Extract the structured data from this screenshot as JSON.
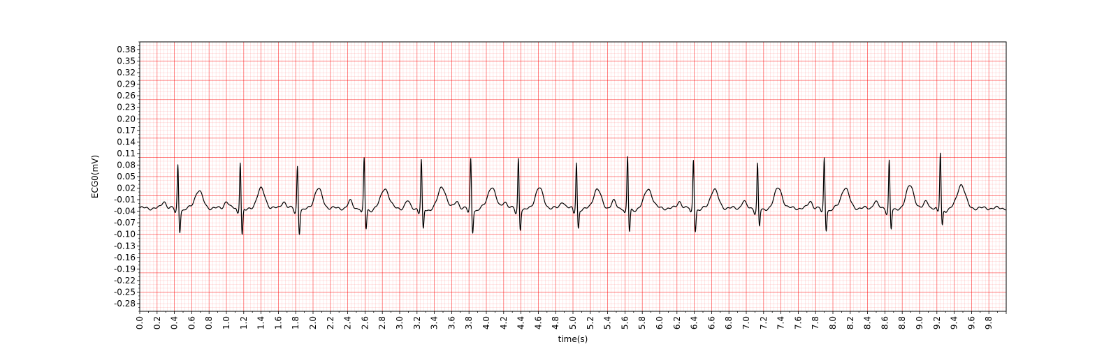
{
  "chart_data": {
    "type": "line",
    "title": "",
    "xlabel": "time(s)",
    "ylabel": "ECG0(mV)",
    "xlim": [
      0.0,
      10.0
    ],
    "ylim": [
      -0.3,
      0.4
    ],
    "xticks": [
      "0.0",
      "0.2",
      "0.4",
      "0.6",
      "0.8",
      "1.0",
      "1.2",
      "1.4",
      "1.6",
      "1.8",
      "2.0",
      "2.2",
      "2.4",
      "2.6",
      "2.8",
      "3.0",
      "3.2",
      "3.4",
      "3.6",
      "3.8",
      "4.0",
      "4.2",
      "4.4",
      "4.6",
      "4.8",
      "5.0",
      "5.2",
      "5.4",
      "5.6",
      "5.8",
      "6.0",
      "6.2",
      "6.4",
      "6.6",
      "6.8",
      "7.0",
      "7.2",
      "7.4",
      "7.6",
      "7.8",
      "8.0",
      "8.2",
      "8.4",
      "8.6",
      "8.8",
      "9.0",
      "9.2",
      "9.4",
      "9.6",
      "9.8"
    ],
    "yticks": [
      "0.38",
      "0.35",
      "0.32",
      "0.29",
      "0.26",
      "0.23",
      "0.20",
      "0.17",
      "0.14",
      "0.11",
      "0.08",
      "0.05",
      "0.02",
      "-0.01",
      "-0.04",
      "-0.07",
      "-0.10",
      "-0.13",
      "-0.16",
      "-0.19",
      "-0.22",
      "-0.25",
      "-0.28"
    ],
    "grid": true,
    "grid_color": "#ff0000",
    "background": "#ffffff",
    "series": [
      {
        "line_color": "#000000",
        "baseline": -0.032,
        "beats": [
          {
            "r_time": 0.44,
            "r_peak": 0.083,
            "s_trough": -0.09,
            "t_amp": 0.045
          },
          {
            "r_time": 1.16,
            "r_peak": 0.092,
            "s_trough": -0.1,
            "t_amp": 0.05
          },
          {
            "r_time": 1.82,
            "r_peak": 0.08,
            "s_trough": -0.095,
            "t_amp": 0.05
          },
          {
            "r_time": 2.59,
            "r_peak": 0.098,
            "s_trough": -0.085,
            "t_amp": 0.052
          },
          {
            "r_time": 3.25,
            "r_peak": 0.093,
            "s_trough": -0.087,
            "t_amp": 0.055
          },
          {
            "r_time": 3.82,
            "r_peak": 0.097,
            "s_trough": -0.092,
            "t_amp": 0.055
          },
          {
            "r_time": 4.37,
            "r_peak": 0.1,
            "s_trough": -0.085,
            "t_amp": 0.052
          },
          {
            "r_time": 5.04,
            "r_peak": 0.09,
            "s_trough": -0.082,
            "t_amp": 0.048
          },
          {
            "r_time": 5.63,
            "r_peak": 0.102,
            "s_trough": -0.093,
            "t_amp": 0.05
          },
          {
            "r_time": 6.39,
            "r_peak": 0.097,
            "s_trough": -0.088,
            "t_amp": 0.048
          },
          {
            "r_time": 7.13,
            "r_peak": 0.085,
            "s_trough": -0.078,
            "t_amp": 0.052
          },
          {
            "r_time": 7.9,
            "r_peak": 0.1,
            "s_trough": -0.086,
            "t_amp": 0.053
          },
          {
            "r_time": 8.65,
            "r_peak": 0.094,
            "s_trough": -0.085,
            "t_amp": 0.058
          },
          {
            "r_time": 9.24,
            "r_peak": 0.113,
            "s_trough": -0.075,
            "t_amp": 0.062
          }
        ]
      }
    ]
  }
}
